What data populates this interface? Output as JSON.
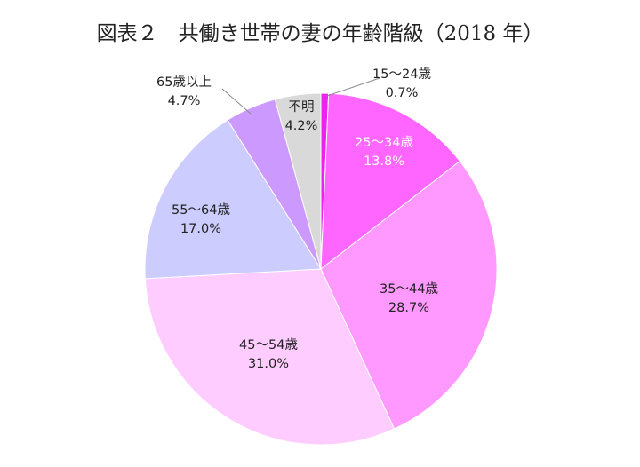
{
  "chart_data": {
    "type": "pie",
    "title": "図表２　共働き世帯の妻の年齢階級（2018 年）",
    "start_angle_deg": 0,
    "direction": "clockwise",
    "slices": [
      {
        "label": "15～24歳",
        "value": 0.7,
        "value_text": "0.7%",
        "color": "#ee22ee",
        "label_color": "#222222"
      },
      {
        "label": "25～34歳",
        "value": 13.8,
        "value_text": "13.8%",
        "color": "#ff66ff",
        "label_color": "#ffffff"
      },
      {
        "label": "35～44歳",
        "value": 28.7,
        "value_text": "28.7%",
        "color": "#ff99ff",
        "label_color": "#222222"
      },
      {
        "label": "45～54歳",
        "value": 31.0,
        "value_text": "31.0%",
        "color": "#ffccff",
        "label_color": "#222222"
      },
      {
        "label": "55～64歳",
        "value": 17.0,
        "value_text": "17.0%",
        "color": "#ccccff",
        "label_color": "#222222"
      },
      {
        "label": "65歳以上",
        "value": 4.7,
        "value_text": "4.7%",
        "color": "#cc99ff",
        "label_color": "#222222"
      },
      {
        "label": "不明",
        "value": 4.2,
        "value_text": "4.2%",
        "color": "#d9d9d9",
        "label_color": "#222222"
      }
    ]
  }
}
